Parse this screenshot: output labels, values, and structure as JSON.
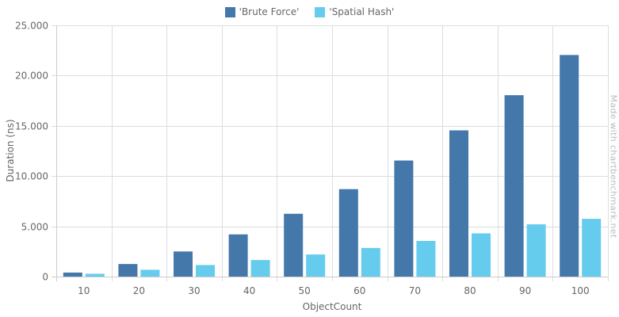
{
  "chart_data": {
    "type": "bar",
    "categories": [
      "10",
      "20",
      "30",
      "40",
      "50",
      "60",
      "70",
      "80",
      "90",
      "100"
    ],
    "series": [
      {
        "name": "'Brute Force'",
        "color": "#4477aa",
        "values": [
          400,
          1250,
          2500,
          4200,
          6250,
          8700,
          11550,
          14550,
          18050,
          22050
        ]
      },
      {
        "name": "'Spatial Hash'",
        "color": "#66ccee",
        "values": [
          280,
          680,
          1150,
          1650,
          2200,
          2850,
          3550,
          4300,
          5200,
          5750
        ]
      }
    ],
    "xlabel": "ObjectCount",
    "ylabel": "Duration (ns)",
    "ylim": [
      0,
      25000
    ],
    "yticks": [
      0,
      5000,
      10000,
      15000,
      20000,
      25000
    ],
    "ytick_labels": [
      "0",
      "5.000",
      "10.000",
      "15.000",
      "20.000",
      "25.000"
    ],
    "grid": true,
    "legend_position": "top-center"
  },
  "watermark": "Made with chartbenchmark.net"
}
